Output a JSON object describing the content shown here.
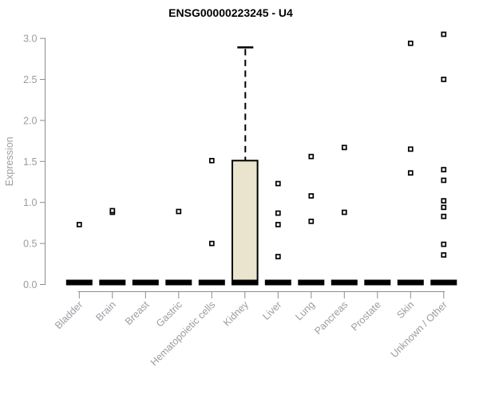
{
  "chart_data": {
    "type": "boxplot",
    "title": "ENSG00000223245 - U4",
    "ylabel": "Expression",
    "xlabel": "",
    "ylim": [
      0.0,
      3.0
    ],
    "ytick_labels": [
      "0.0",
      "0.5",
      "1.0",
      "1.5",
      "2.0",
      "2.5",
      "3.0"
    ],
    "grid": false,
    "legend_position": "none",
    "categories": [
      "Bladder",
      "Brain",
      "Breast",
      "Gastric",
      "Hematopoietic cells",
      "Kidney",
      "Liver",
      "Lung",
      "Pancreas",
      "Prostate",
      "Skin",
      "Unknown / Other"
    ],
    "boxes": [
      {
        "category": "Bladder",
        "q1": 0,
        "median": 0,
        "q3": 0,
        "whisker_low": 0,
        "whisker_high": 0,
        "points": [
          0.73
        ]
      },
      {
        "category": "Brain",
        "q1": 0,
        "median": 0,
        "q3": 0,
        "whisker_low": 0,
        "whisker_high": 0,
        "points": [
          0.88,
          0.9
        ]
      },
      {
        "category": "Breast",
        "q1": 0,
        "median": 0,
        "q3": 0,
        "whisker_low": 0,
        "whisker_high": 0,
        "points": []
      },
      {
        "category": "Gastric",
        "q1": 0,
        "median": 0,
        "q3": 0,
        "whisker_low": 0,
        "whisker_high": 0,
        "points": [
          0.89
        ]
      },
      {
        "category": "Hematopoietic cells",
        "q1": 0,
        "median": 0,
        "q3": 0,
        "whisker_low": 0,
        "whisker_high": 0,
        "points": [
          1.51,
          0.5
        ]
      },
      {
        "category": "Kidney",
        "q1": 0,
        "median": 0,
        "q3": 1.51,
        "whisker_low": 0,
        "whisker_high": 2.89,
        "points": []
      },
      {
        "category": "Liver",
        "q1": 0,
        "median": 0,
        "q3": 0,
        "whisker_low": 0,
        "whisker_high": 0,
        "points": [
          1.23,
          0.87,
          0.73,
          0.34
        ]
      },
      {
        "category": "Lung",
        "q1": 0,
        "median": 0,
        "q3": 0,
        "whisker_low": 0,
        "whisker_high": 0,
        "points": [
          1.56,
          1.08,
          0.77
        ]
      },
      {
        "category": "Pancreas",
        "q1": 0,
        "median": 0,
        "q3": 0,
        "whisker_low": 0,
        "whisker_high": 0,
        "points": [
          1.67,
          0.88
        ]
      },
      {
        "category": "Prostate",
        "q1": 0,
        "median": 0,
        "q3": 0,
        "whisker_low": 0,
        "whisker_high": 0,
        "points": []
      },
      {
        "category": "Skin",
        "q1": 0,
        "median": 0,
        "q3": 0,
        "whisker_low": 0,
        "whisker_high": 0,
        "points": [
          2.94,
          1.65,
          1.36
        ]
      },
      {
        "category": "Unknown / Other",
        "q1": 0,
        "median": 0,
        "q3": 0,
        "whisker_low": 0,
        "whisker_high": 0,
        "points": [
          3.05,
          2.5,
          1.4,
          1.27,
          1.02,
          0.94,
          0.83,
          0.49,
          0.36
        ]
      }
    ],
    "colors": {
      "box_fill": "#EAE4CE",
      "box_stroke": "#000000",
      "median_bar": "#000000",
      "whisker": "#000000",
      "point_fill": "#FFFFFF",
      "point_stroke": "#000000",
      "axis_line": "#8C8C8C",
      "tick_text": "#999CA1",
      "title_text": "#000000",
      "background": "#FFFFFF"
    }
  }
}
